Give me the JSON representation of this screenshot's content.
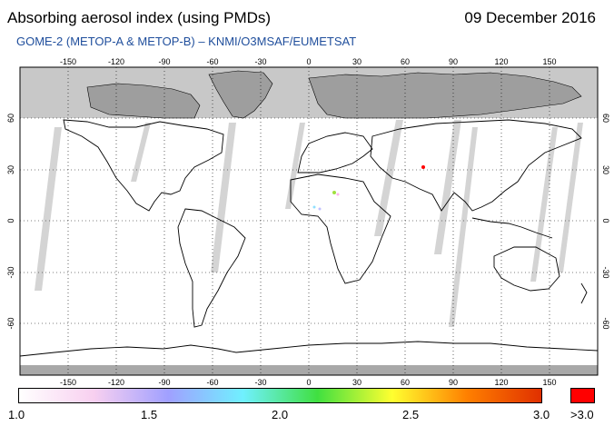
{
  "header": {
    "title": "Absorbing aerosol index (using PMDs)",
    "date": "09 December 2016",
    "subtitle": "GOME-2 (METOP-A & METOP-B)  –  KNMI/O3MSAF/EUMETSAT"
  },
  "map": {
    "lon_ticks": [
      "-150",
      "-120",
      "-90",
      "-60",
      "-30",
      "0",
      "30",
      "60",
      "90",
      "120",
      "150"
    ],
    "lat_ticks": [
      "60",
      "30",
      "0",
      "-30",
      "-60"
    ],
    "lon_range": [
      -180,
      180
    ],
    "lat_range": [
      -90,
      90
    ],
    "gridlines": "dotted",
    "colors": {
      "no_data": "#c8c8c8",
      "land_mask": "#9e9e9e",
      "coastline": "#000000"
    }
  },
  "colorbar": {
    "labels": [
      "1.0",
      "1.5",
      "2.0",
      "2.5",
      "3.0"
    ],
    "over_label": ">3.0",
    "colors": [
      "#ffffff",
      "#f8d0f0",
      "#a0a0ff",
      "#70f0ff",
      "#40e040",
      "#ffff30",
      "#ff8000",
      "#e03000"
    ],
    "over_color": "#ff0000"
  }
}
